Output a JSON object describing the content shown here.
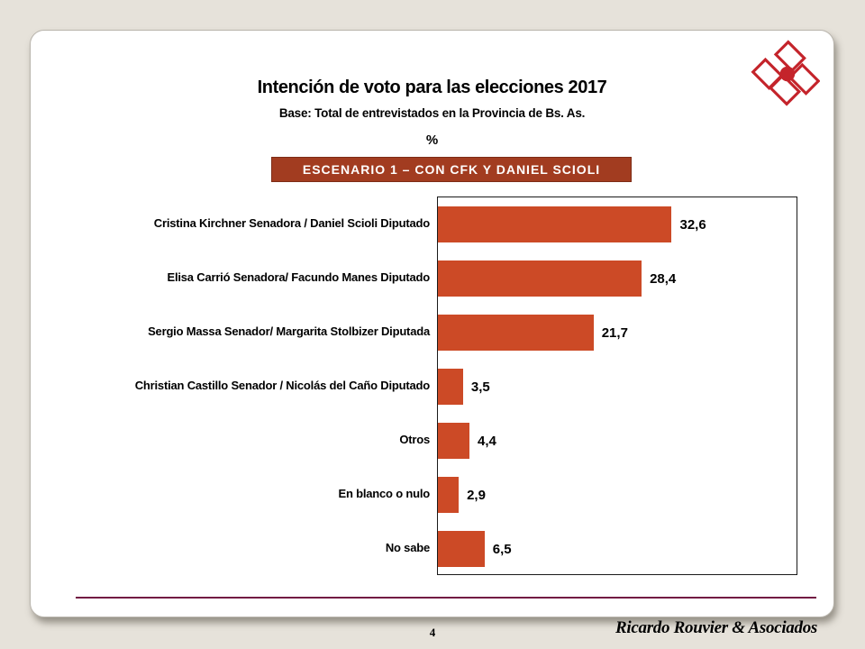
{
  "header": {
    "title": "Intención de voto para las elecciones 2017",
    "subtitle": "Base: Total de entrevistados en la Provincia de Bs. As.",
    "unit_label": "%",
    "scenario_banner": "ESCENARIO 1 – CON CFK Y DANIEL SCIOLI"
  },
  "chart_data": {
    "type": "bar",
    "orientation": "horizontal",
    "title": "Intención de voto para las elecciones 2017",
    "subtitle": "Base: Total de entrevistados en la Provincia de Bs. As.",
    "unit": "%",
    "categories": [
      "Cristina Kirchner Senadora / Daniel Scioli Diputado",
      "Elisa Carrió Senadora/ Facundo Manes Diputado",
      "Sergio Massa Senador/ Margarita Stolbizer Diputada",
      "Christian Castillo Senador / Nicolás del Caño Diputado",
      "Otros",
      "En blanco o nulo",
      "No sabe"
    ],
    "values": [
      32.6,
      28.4,
      21.7,
      3.5,
      4.4,
      2.9,
      6.5
    ],
    "value_labels": [
      "32,6",
      "28,4",
      "21,7",
      "3,5",
      "4,4",
      "2,9",
      "6,5"
    ],
    "xlim": [
      0,
      50
    ],
    "grid": false,
    "legend": false,
    "bar_color": "#CC4A26"
  },
  "footer": {
    "page_number": "4",
    "brand": "Ricardo Rouvier & Asociados"
  },
  "logo": {
    "name": "rouvier-logo"
  },
  "colors": {
    "page_bg": "#E6E2DA",
    "card_bg": "#FFFFFF",
    "bar": "#CC4A26",
    "banner_bg": "#A23C20",
    "banner_text": "#FFFFFF",
    "footer_line": "#721843",
    "logo_red": "#C4242B",
    "text": "#000000"
  }
}
